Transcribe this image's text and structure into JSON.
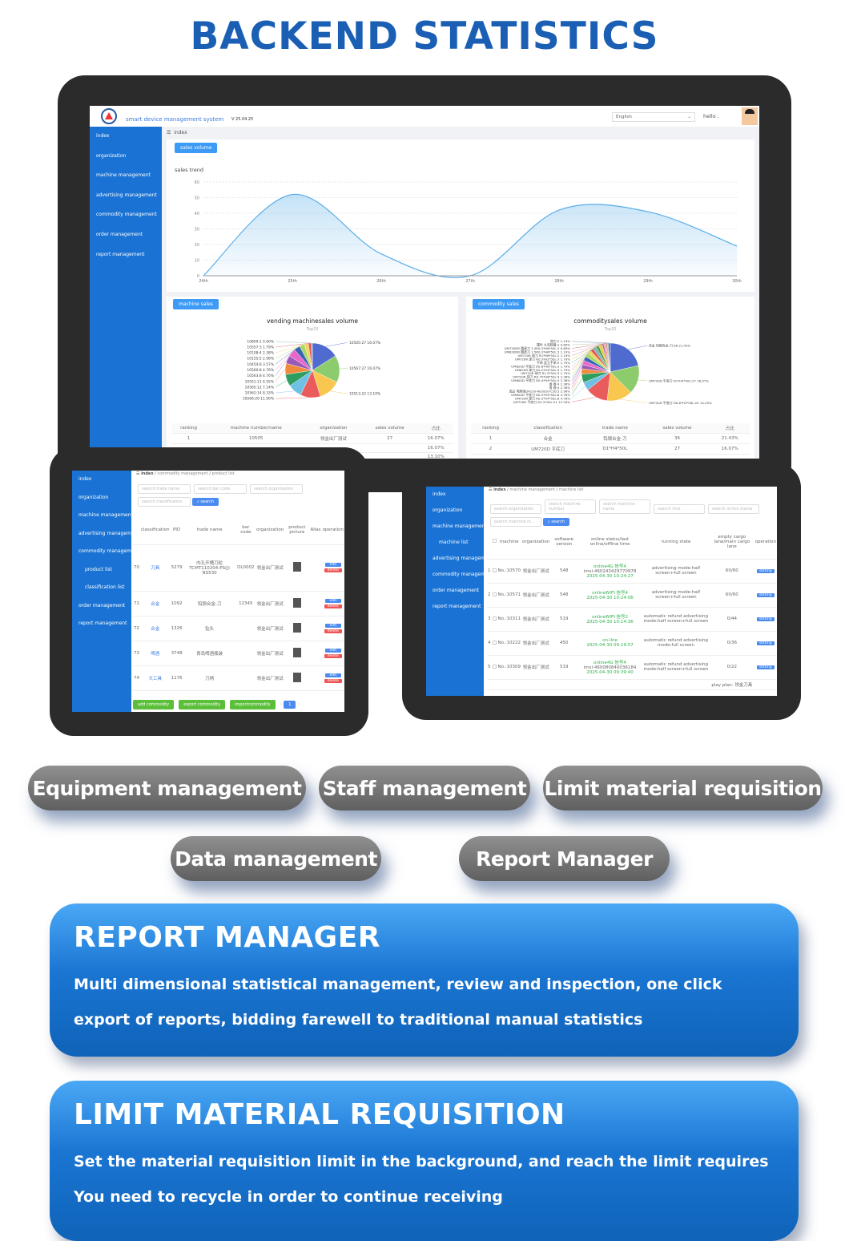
{
  "title": "BACKEND STATISTICS",
  "monitor": {
    "app_title": "smart device management system",
    "version": "V 25.04.25",
    "language": "English",
    "greeting": "hello ,",
    "sidebar": [
      "index",
      "organization",
      "machine management",
      "advertising management",
      "commodity management",
      "order management",
      "report management"
    ],
    "breadcrumb": "index",
    "tab": "sales volume",
    "chart_title": "sales trend",
    "machine_tab": "machine sales",
    "machine_chart_title": "vending machinesales volume",
    "subtitle": "Top20",
    "commodity_tab": "commodity sales",
    "commodity_chart_title": "commoditysales volume",
    "machine_table": {
      "headers": [
        "ranking",
        "machine number/name",
        "organization",
        "sales volume",
        "占比"
      ],
      "rows": [
        [
          "1",
          "10505",
          "领金出厂测试",
          "27",
          "16.07%"
        ],
        [
          "",
          "",
          "",
          "",
          "16.07%"
        ],
        [
          "",
          "",
          "",
          "",
          "13.10%"
        ]
      ]
    },
    "commodity_table": {
      "headers": [
        "ranking",
        "classification",
        "trade name",
        "sales volume",
        "占比"
      ],
      "rows": [
        [
          "1",
          "合金",
          "钨钢合金-刀",
          "36",
          "21.43%"
        ],
        [
          "2",
          "UM720D 平底刀",
          "D1*H4*50L",
          "27",
          "16.07%"
        ]
      ]
    }
  },
  "chart_data": [
    {
      "type": "area",
      "title": "sales trend",
      "categories": [
        "24th",
        "25th",
        "26th",
        "27th",
        "28th",
        "29th",
        "30th"
      ],
      "values": [
        0,
        52,
        14,
        0,
        42,
        41,
        19
      ],
      "ylim": [
        0,
        60
      ],
      "yticks": [
        0,
        10,
        20,
        30,
        40,
        50,
        60
      ],
      "grid": true,
      "color": "#5aaee8"
    },
    {
      "type": "pie",
      "title": "vending machinesales volume",
      "subtitle": "Top20",
      "slices": [
        {
          "label": "10505:27",
          "pct": "16.07%",
          "value": 27
        },
        {
          "label": "10567:27",
          "pct": "16.07%",
          "value": 27
        },
        {
          "label": "10513:22",
          "pct": "13.10%",
          "value": 22
        },
        {
          "label": "10566:20",
          "pct": "11.90%",
          "value": 20
        },
        {
          "label": "10562:14",
          "pct": "8.33%",
          "value": 14
        },
        {
          "label": "10565:12",
          "pct": "7.14%",
          "value": 12
        },
        {
          "label": "10551:11",
          "pct": "6.55%",
          "value": 11
        },
        {
          "label": "10563:8",
          "pct": "4.76%",
          "value": 8
        },
        {
          "label": "10560:8",
          "pct": "4.76%",
          "value": 8
        },
        {
          "label": "10454:6",
          "pct": "3.57%",
          "value": 6
        },
        {
          "label": "10155:5",
          "pct": "2.98%",
          "value": 5
        },
        {
          "label": "10108:4",
          "pct": "2.38%",
          "value": 4
        },
        {
          "label": "10557:3",
          "pct": "1.79%",
          "value": 3
        },
        {
          "label": "10809:1",
          "pct": "0.60%",
          "value": 1
        }
      ]
    },
    {
      "type": "pie",
      "title": "commoditysales volume",
      "subtitle": "Top20",
      "slices": [
        {
          "label": "合金 钨钢合金-刀:36",
          "pct": "21.43%",
          "value": 36
        },
        {
          "label": "UM720D 平底刀 D1*H4*50L:27",
          "pct": "16.07%",
          "value": 27
        },
        {
          "label": "UM720D 平底刀 D0.6*H2*50L:24",
          "pct": "14.29%",
          "value": 24
        },
        {
          "label": "UM720D 平底刀 D1.5*50L:21",
          "pct": "12.50%",
          "value": 21
        },
        {
          "label": "UM720R 球刀 R0.5*H4*50L:8",
          "pct": "4.76%",
          "value": 8
        },
        {
          "label": "UM620D 平底刀 D0.5*H5*50L:8",
          "pct": "4.76%",
          "value": 8
        },
        {
          "label": "成品 电刷组D4220-R01820-C50:5",
          "pct": "2.98%",
          "value": 5
        },
        {
          "label": "香 香:4",
          "pct": "2.38%",
          "value": 4
        },
        {
          "label": "香 香:4",
          "pct": "2.38%",
          "value": 4
        },
        {
          "label": "UM600D 平底刀 D0.4*H4*50L:4",
          "pct": "2.38%",
          "value": 4
        },
        {
          "label": "UM720R 球刀 R0.75*H6*50L:4",
          "pct": "2.38%",
          "value": 4
        },
        {
          "label": "UM720R 球刀 R1.5*50L:3",
          "pct": "1.79%",
          "value": 3
        },
        {
          "label": "UM620R 球刀 R0.2*H4*50L:3",
          "pct": "1.79%",
          "value": 3
        },
        {
          "label": "UM620D 平底刀 D0.6*H6*50L:3",
          "pct": "1.79%",
          "value": 3
        },
        {
          "label": "手串 蓝玉手串:3",
          "pct": "1.79%",
          "value": 3
        },
        {
          "label": "UM720R 球刀 R0.3*H2*50L:3",
          "pct": "1.79%",
          "value": 3
        },
        {
          "label": "UM720R 球刀 R1*H6*50L:2",
          "pct": "1.19%",
          "value": 2
        },
        {
          "label": "UM620DR 圆鼻刀 1.5R0.2*H6*50L:2",
          "pct": "1.19%",
          "value": 2
        },
        {
          "label": "UM720DR 圆鼻刀 1.5R0.2*H6*50L:1",
          "pct": "0.60%",
          "value": 1
        },
        {
          "label": "摆件 九宫棋盘:1",
          "pct": "0.60%",
          "value": 1
        },
        {
          "label": "其它:2",
          "pct": "1.19%",
          "value": 2
        }
      ]
    }
  ],
  "pie_colors": [
    "#4f6bd0",
    "#8ccc6c",
    "#f9c74f",
    "#ea5b5b",
    "#6ec1e4",
    "#2e9e60",
    "#f08a3c",
    "#9b59b6",
    "#e867c9",
    "#3a62b5",
    "#a6d96a",
    "#f4d35e",
    "#e15759",
    "#76b7b2",
    "#59a14f",
    "#edc948",
    "#b07aa1",
    "#ff9da7",
    "#9c755f",
    "#bab0ac",
    "#4e79a7"
  ],
  "product_tablet": {
    "sidebar": [
      "index",
      "organization",
      "machine management",
      "advertising management",
      "commodity management",
      "product list",
      "classification list",
      "order management",
      "report management"
    ],
    "breadcrumb": [
      "index",
      "commodity management",
      "product list"
    ],
    "filters": [
      "search trade name",
      "search bar code",
      "search organization",
      "search classification"
    ],
    "search": "search",
    "headers": [
      "classification",
      "PID",
      "trade name",
      "bar code",
      "organization",
      "product picture",
      "Alias",
      "operation"
    ],
    "rows": [
      [
        "70",
        "刀具",
        "5279",
        "内孔开槽刀粒 TCMT110204-PS(J) NS530",
        "DL0002",
        "领金出厂测试"
      ],
      [
        "71",
        "合金",
        "1092",
        "钨钢合金-刀",
        "12345",
        "领金出厂测试"
      ],
      [
        "72",
        "合金",
        "1326",
        "钻头",
        "",
        "领金出厂测试"
      ],
      [
        "73",
        "啤酒",
        "3748",
        "青岛啤酒瓶装",
        "",
        "领金出厂测试"
      ],
      [
        "74",
        "大工具",
        "1176",
        "刀柄",
        "",
        "领金出厂测试"
      ]
    ],
    "edit": "edit",
    "delete": "delete",
    "buttons": [
      "add commodity",
      "export commodity",
      "importcommodity"
    ],
    "page": "1"
  },
  "machine_tablet": {
    "sidebar": [
      "index",
      "organization",
      "machine management",
      "machine list",
      "advertising management",
      "commodity management",
      "order management",
      "report management"
    ],
    "breadcrumb": [
      "index",
      "machine management",
      "machine list"
    ],
    "filters": [
      "search organization",
      "search machine number",
      "search machine name",
      "search imsi",
      "search online status",
      "search machine in..."
    ],
    "search": "search",
    "headers": [
      "machine",
      "organization",
      "software version",
      "online status/last online/offline time",
      "running state",
      "empty cargo lane/main cargo lane",
      "operation"
    ],
    "rows": [
      [
        "1",
        "No.:10570",
        "领金出厂测试",
        "548",
        "online4G 信号4",
        "imsi:460243429770978",
        "2025-04-30 10:24:27",
        "advertising mode:half screen+full screen",
        "60/60"
      ],
      [
        "2",
        "No.:10571",
        "领金出厂测试",
        "548",
        "onlineWIFI 信号4",
        "",
        "2025-04-30 10:24:06",
        "advertising mode:half screen+full screen",
        "60/60"
      ],
      [
        "3",
        "No.:10311",
        "领金出厂测试",
        "519",
        "onlineWIFI 信号2",
        "",
        "2025-04-30 10:14:36",
        "automatic refund advertising mode:half screen+full screen",
        "0/44"
      ],
      [
        "4",
        "No.:10222",
        "领金出厂测试",
        "450",
        "on-line",
        "",
        "2025-04-30 09:19:57",
        "automatic refund advertising mode:full screen",
        "0/36"
      ],
      [
        "5",
        "No.:10309",
        "领金出厂测试",
        "519",
        "online4G 信号4",
        "imsi:460080840036184",
        "2025-04-30 09:39:40",
        "automatic refund advertising mode:half screen+full screen",
        "0/22"
      ]
    ],
    "last_row_partial": "play plan: 领金刀具",
    "setting": "setting"
  },
  "features": [
    "Equipment management",
    "Staff management",
    "Limit material requisition",
    "Data management",
    "Report Manager"
  ],
  "cards": [
    {
      "title": "REPORT MANAGER",
      "text": "Multi dimensional statistical management, review and inspection, one click export of reports, bidding farewell to traditional manual statistics"
    },
    {
      "title": "LIMIT MATERIAL REQUISITION",
      "text": "Set the material requisition limit in the background, and reach the limit requires You need to recycle in order to continue receiving"
    }
  ]
}
